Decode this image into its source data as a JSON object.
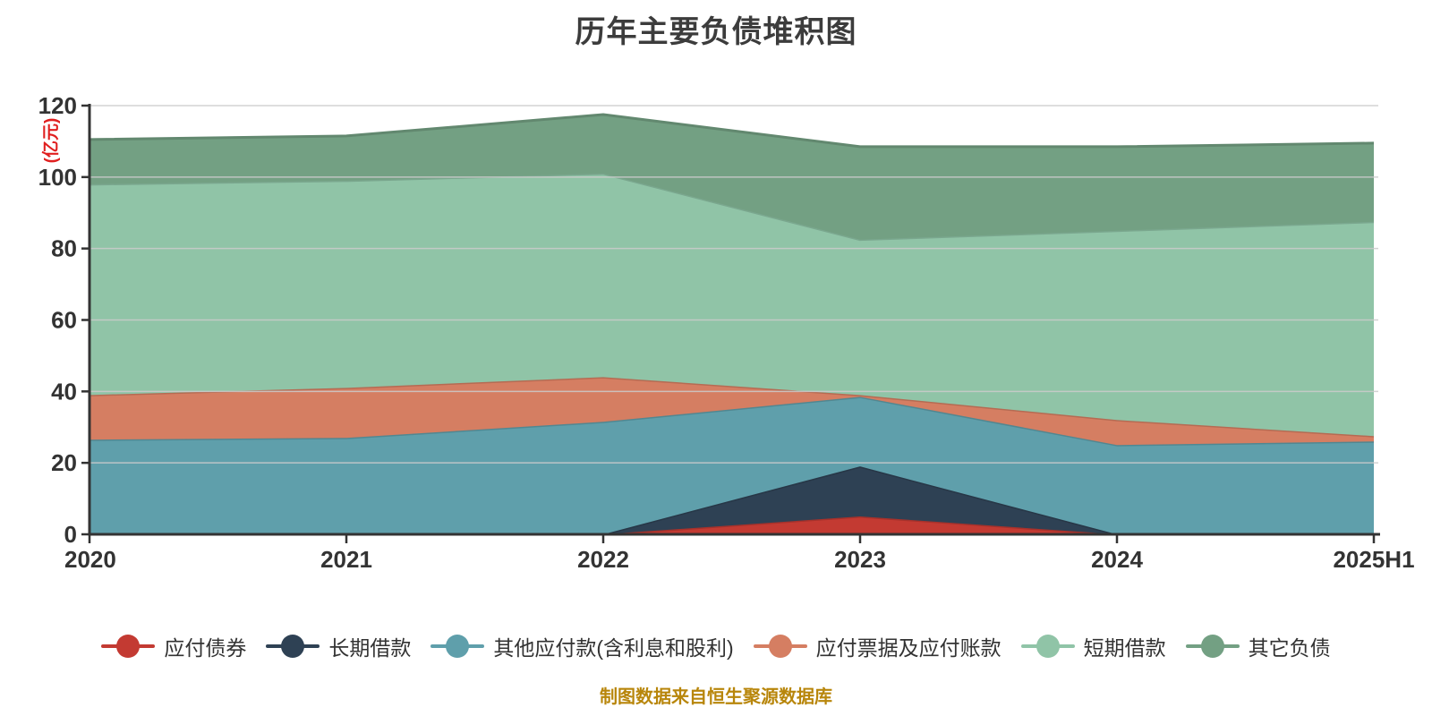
{
  "title": "历年主要负债堆积图",
  "y_axis_name": "(亿元)",
  "footer": "制图数据来自恒生聚源数据库",
  "styles": {
    "title_color": "#3C3C3C",
    "y_axis_name_color": "#E01F1F",
    "footer_color": "#B8860B",
    "axis_color": "#333333",
    "tick_label_color": "#333333",
    "grid_color": "#CCCCCC",
    "background": "#FFFFFF"
  },
  "chart_data": {
    "type": "area",
    "stacked": true,
    "title": "历年主要负债堆积图",
    "ylabel": "(亿元)",
    "xlabel": "",
    "grid": true,
    "legend_position": "bottom",
    "ylim": [
      0,
      120
    ],
    "y_ticks": [
      0,
      20,
      40,
      60,
      80,
      100,
      120
    ],
    "categories": [
      "2020",
      "2021",
      "2022",
      "2023",
      "2024",
      "2025H1"
    ],
    "series": [
      {
        "id": "bonds-payable",
        "name": "应付债券",
        "color": "#C33A32",
        "values": [
          0,
          0,
          0,
          5,
          0,
          0
        ]
      },
      {
        "id": "long-term-loans",
        "name": "长期借款",
        "color": "#2E4154",
        "values": [
          0,
          0,
          0,
          14,
          0,
          0
        ]
      },
      {
        "id": "other-payables",
        "name": "其他应付款(含利息和股利)",
        "color": "#5F9FAB",
        "values": [
          26.5,
          27,
          31.5,
          19.5,
          25,
          26
        ]
      },
      {
        "id": "notes-accounts-payable",
        "name": "应付票据及应付账款",
        "color": "#D57E62",
        "values": [
          12.5,
          14,
          12.5,
          0.5,
          7,
          1.5
        ]
      },
      {
        "id": "short-term-loans",
        "name": "短期借款",
        "color": "#90C4A7",
        "values": [
          59,
          58,
          57,
          43.5,
          53,
          60
        ]
      },
      {
        "id": "other-liabilities",
        "name": "其它负债",
        "color": "#73A083",
        "values": [
          12.5,
          12.5,
          16.5,
          26,
          23.5,
          22
        ]
      }
    ],
    "stack_totals": [
      110.5,
      111.5,
      117.5,
      108.5,
      108.5,
      109.5
    ]
  }
}
